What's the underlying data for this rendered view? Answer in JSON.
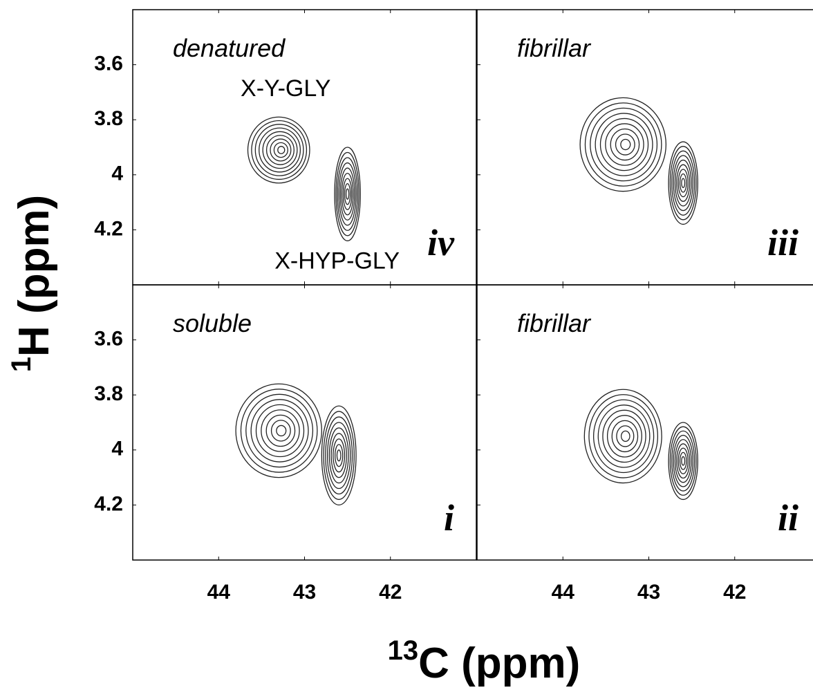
{
  "figure": {
    "x_label_sup": "13",
    "x_label": "C (ppm)",
    "y_label_sup": "1",
    "y_label": "H (ppm)"
  },
  "chart_data": [
    {
      "type": "contour",
      "panel": "iv",
      "condition": "denatured",
      "xlim": [
        45,
        41
      ],
      "ylim": [
        3.4,
        4.4
      ],
      "xticks": [
        44,
        43,
        42
      ],
      "yticks": [
        3.6,
        3.8,
        4.0,
        4.2
      ],
      "peaks": [
        {
          "label": "X-Y-GLY",
          "x": 43.3,
          "y": 3.91,
          "rx": 0.36,
          "ry": 0.12
        },
        {
          "label": "X-HYP-GLY",
          "x": 42.5,
          "y": 4.07,
          "rx": 0.15,
          "ry": 0.17
        }
      ]
    },
    {
      "type": "contour",
      "panel": "iii",
      "condition": "fibrillar",
      "xlim": [
        45,
        41
      ],
      "ylim": [
        3.4,
        4.4
      ],
      "xticks": [
        44,
        43,
        42
      ],
      "yticks": [
        3.6,
        3.8,
        4.0,
        4.2
      ],
      "peaks": [
        {
          "x": 43.3,
          "y": 3.89,
          "rx": 0.5,
          "ry": 0.17
        },
        {
          "x": 42.6,
          "y": 4.03,
          "rx": 0.17,
          "ry": 0.15
        }
      ]
    },
    {
      "type": "contour",
      "panel": "i",
      "condition": "soluble",
      "xlim": [
        45,
        41
      ],
      "ylim": [
        3.4,
        4.4
      ],
      "xticks": [
        44,
        43,
        42
      ],
      "yticks": [
        3.6,
        3.8,
        4.0,
        4.2
      ],
      "peaks": [
        {
          "x": 43.3,
          "y": 3.93,
          "rx": 0.5,
          "ry": 0.17
        },
        {
          "x": 42.6,
          "y": 4.02,
          "rx": 0.2,
          "ry": 0.18
        }
      ]
    },
    {
      "type": "contour",
      "panel": "ii",
      "condition": "fibrillar",
      "xlim": [
        45,
        41
      ],
      "ylim": [
        3.4,
        4.4
      ],
      "xticks": [
        44,
        43,
        42
      ],
      "yticks": [
        3.6,
        3.8,
        4.0,
        4.2
      ],
      "peaks": [
        {
          "x": 43.3,
          "y": 3.95,
          "rx": 0.45,
          "ry": 0.17
        },
        {
          "x": 42.6,
          "y": 4.04,
          "rx": 0.17,
          "ry": 0.14
        }
      ]
    }
  ]
}
